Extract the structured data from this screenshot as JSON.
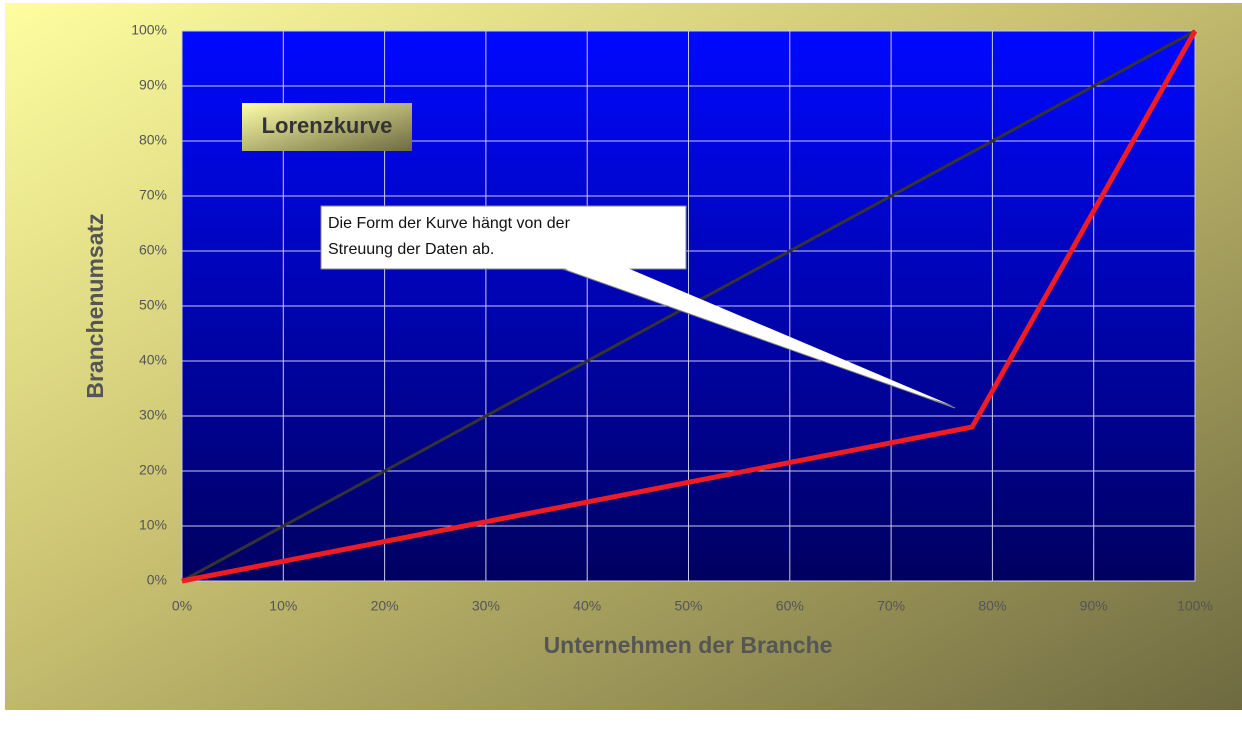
{
  "chart_data": {
    "type": "line",
    "title": "Lorenzkurve",
    "annotation": [
      "Die Form der Kurve hängt von der",
      "Streuung der Daten ab."
    ],
    "xlabel": "Unternehmen der Branche",
    "ylabel": "Branchenumsatz",
    "xlim": [
      0,
      100
    ],
    "ylim": [
      0,
      100
    ],
    "xticks": [
      {
        "value": 0,
        "label": "0%"
      },
      {
        "value": 10,
        "label": "10%"
      },
      {
        "value": 20,
        "label": "20%"
      },
      {
        "value": 30,
        "label": "30%"
      },
      {
        "value": 40,
        "label": "40%"
      },
      {
        "value": 50,
        "label": "50%"
      },
      {
        "value": 60,
        "label": "60%"
      },
      {
        "value": 70,
        "label": "70%"
      },
      {
        "value": 80,
        "label": "80%"
      },
      {
        "value": 90,
        "label": "90%"
      },
      {
        "value": 100,
        "label": "100%"
      }
    ],
    "yticks": [
      {
        "value": 0,
        "label": "0%"
      },
      {
        "value": 10,
        "label": "10%"
      },
      {
        "value": 20,
        "label": "20%"
      },
      {
        "value": 30,
        "label": "30%"
      },
      {
        "value": 40,
        "label": "40%"
      },
      {
        "value": 50,
        "label": "50%"
      },
      {
        "value": 60,
        "label": "60%"
      },
      {
        "value": 70,
        "label": "70%"
      },
      {
        "value": 80,
        "label": "80%"
      },
      {
        "value": 90,
        "label": "90%"
      },
      {
        "value": 100,
        "label": "100%"
      }
    ],
    "grid": true,
    "series": [
      {
        "color": "#333333",
        "width": 3,
        "x": [
          0,
          100
        ],
        "values": [
          0,
          100
        ]
      },
      {
        "color": "#ee1c25",
        "width": 5,
        "x": [
          0,
          78,
          100
        ],
        "values": [
          0,
          28,
          100
        ]
      }
    ]
  }
}
